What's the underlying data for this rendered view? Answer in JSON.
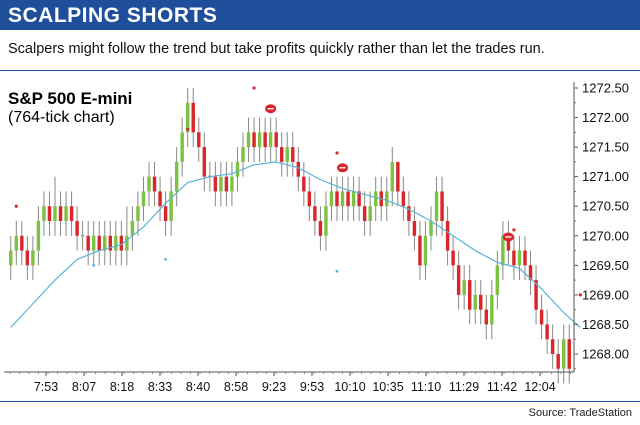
{
  "header": {
    "title": "SCALPING SHORTS"
  },
  "subtitle": "Scalpers might follow the trend but take profits quickly rather than let the trades run.",
  "source": "Source: TradeStation",
  "colors": {
    "header_bg": "#1f4e9a",
    "up_bar": "#7cc243",
    "down_bar": "#d8262b",
    "neutral_bar": "#aaaaaa",
    "moving_average": "#5ab4d6",
    "marker_red": "#d8262b",
    "marker_teal": "#5ab4d6"
  },
  "chart_data": {
    "type": "candlestick",
    "title": "S&P 500 E-mini",
    "note": "(764-tick chart)",
    "ylim": [
      1267.5,
      1272.6
    ],
    "y_ticks": [
      "1272.50",
      "1272.00",
      "1271.50",
      "1271.00",
      "1270.50",
      "1270.00",
      "1269.50",
      "1269.00",
      "1268.50",
      "1268.00"
    ],
    "x_tick_labels": [
      "7:53",
      "8:07",
      "8:18",
      "8:33",
      "8:40",
      "8:58",
      "9:23",
      "9:53",
      "10:10",
      "10:35",
      "11:10",
      "11:29",
      "11:42",
      "12:04"
    ],
    "bars": [
      {
        "o": 1269.5,
        "c": 1269.75,
        "h": 1270.0,
        "l": 1269.25
      },
      {
        "o": 1269.75,
        "c": 1270.0,
        "h": 1270.25,
        "l": 1269.5
      },
      {
        "o": 1270.0,
        "c": 1269.75,
        "h": 1270.25,
        "l": 1269.5
      },
      {
        "o": 1269.75,
        "c": 1269.5,
        "h": 1270.0,
        "l": 1269.25
      },
      {
        "o": 1269.5,
        "c": 1269.75,
        "h": 1270.0,
        "l": 1269.25
      },
      {
        "o": 1269.75,
        "c": 1270.25,
        "h": 1270.5,
        "l": 1269.5
      },
      {
        "o": 1270.25,
        "c": 1270.5,
        "h": 1270.75,
        "l": 1270.0
      },
      {
        "o": 1270.5,
        "c": 1270.25,
        "h": 1270.75,
        "l": 1270.0
      },
      {
        "o": 1270.25,
        "c": 1270.5,
        "h": 1271.0,
        "l": 1270.0
      },
      {
        "o": 1270.5,
        "c": 1270.25,
        "h": 1270.75,
        "l": 1270.0
      },
      {
        "o": 1270.25,
        "c": 1270.5,
        "h": 1270.75,
        "l": 1270.0
      },
      {
        "o": 1270.5,
        "c": 1270.25,
        "h": 1270.75,
        "l": 1270.0
      },
      {
        "o": 1270.25,
        "c": 1270.0,
        "h": 1270.5,
        "l": 1269.75
      },
      {
        "o": 1270.0,
        "c": 1270.0,
        "h": 1270.25,
        "l": 1269.75
      },
      {
        "o": 1270.0,
        "c": 1269.75,
        "h": 1270.25,
        "l": 1269.5
      },
      {
        "o": 1269.75,
        "c": 1270.0,
        "h": 1270.25,
        "l": 1269.5
      },
      {
        "o": 1270.0,
        "c": 1269.75,
        "h": 1270.25,
        "l": 1269.5
      },
      {
        "o": 1269.75,
        "c": 1270.0,
        "h": 1270.25,
        "l": 1269.5
      },
      {
        "o": 1270.0,
        "c": 1269.75,
        "h": 1270.25,
        "l": 1269.5
      },
      {
        "o": 1269.75,
        "c": 1270.0,
        "h": 1270.25,
        "l": 1269.5
      },
      {
        "o": 1270.0,
        "c": 1269.75,
        "h": 1270.25,
        "l": 1269.5
      },
      {
        "o": 1269.75,
        "c": 1270.0,
        "h": 1270.5,
        "l": 1269.5
      },
      {
        "o": 1270.0,
        "c": 1270.25,
        "h": 1270.5,
        "l": 1269.75
      },
      {
        "o": 1270.25,
        "c": 1270.5,
        "h": 1270.75,
        "l": 1270.0
      },
      {
        "o": 1270.5,
        "c": 1270.75,
        "h": 1271.0,
        "l": 1270.25
      },
      {
        "o": 1270.75,
        "c": 1271.0,
        "h": 1271.25,
        "l": 1270.5
      },
      {
        "o": 1271.0,
        "c": 1270.75,
        "h": 1271.25,
        "l": 1270.5
      },
      {
        "o": 1270.75,
        "c": 1270.5,
        "h": 1271.0,
        "l": 1270.25
      },
      {
        "o": 1270.5,
        "c": 1270.25,
        "h": 1270.75,
        "l": 1270.0
      },
      {
        "o": 1270.25,
        "c": 1270.75,
        "h": 1271.0,
        "l": 1270.0
      },
      {
        "o": 1270.75,
        "c": 1271.25,
        "h": 1271.5,
        "l": 1270.5
      },
      {
        "o": 1271.25,
        "c": 1271.75,
        "h": 1272.0,
        "l": 1271.0
      },
      {
        "o": 1271.75,
        "c": 1272.25,
        "h": 1272.5,
        "l": 1271.5
      },
      {
        "o": 1272.25,
        "c": 1271.75,
        "h": 1272.5,
        "l": 1271.5
      },
      {
        "o": 1271.75,
        "c": 1271.5,
        "h": 1272.0,
        "l": 1271.25
      },
      {
        "o": 1271.5,
        "c": 1271.0,
        "h": 1271.75,
        "l": 1270.75
      },
      {
        "o": 1271.0,
        "c": 1271.0,
        "h": 1271.25,
        "l": 1270.75
      },
      {
        "o": 1271.0,
        "c": 1270.75,
        "h": 1271.25,
        "l": 1270.5
      },
      {
        "o": 1270.75,
        "c": 1271.0,
        "h": 1271.25,
        "l": 1270.5
      },
      {
        "o": 1271.0,
        "c": 1270.75,
        "h": 1271.25,
        "l": 1270.5
      },
      {
        "o": 1270.75,
        "c": 1271.0,
        "h": 1271.25,
        "l": 1270.5
      },
      {
        "o": 1271.0,
        "c": 1271.25,
        "h": 1271.5,
        "l": 1270.75
      },
      {
        "o": 1271.25,
        "c": 1271.5,
        "h": 1271.75,
        "l": 1271.0
      },
      {
        "o": 1271.5,
        "c": 1271.75,
        "h": 1272.0,
        "l": 1271.25
      },
      {
        "o": 1271.75,
        "c": 1271.5,
        "h": 1272.0,
        "l": 1271.25
      },
      {
        "o": 1271.5,
        "c": 1271.75,
        "h": 1272.0,
        "l": 1271.25
      },
      {
        "o": 1271.75,
        "c": 1271.5,
        "h": 1272.0,
        "l": 1271.25
      },
      {
        "o": 1271.5,
        "c": 1271.75,
        "h": 1272.0,
        "l": 1271.25
      },
      {
        "o": 1271.75,
        "c": 1271.5,
        "h": 1272.0,
        "l": 1271.25
      },
      {
        "o": 1271.5,
        "c": 1271.25,
        "h": 1271.75,
        "l": 1271.0
      },
      {
        "o": 1271.25,
        "c": 1271.5,
        "h": 1271.75,
        "l": 1271.0
      },
      {
        "o": 1271.5,
        "c": 1271.25,
        "h": 1271.75,
        "l": 1271.0
      },
      {
        "o": 1271.25,
        "c": 1271.0,
        "h": 1271.5,
        "l": 1270.75
      },
      {
        "o": 1271.0,
        "c": 1270.75,
        "h": 1271.25,
        "l": 1270.5
      },
      {
        "o": 1270.75,
        "c": 1270.5,
        "h": 1271.0,
        "l": 1270.25
      },
      {
        "o": 1270.5,
        "c": 1270.25,
        "h": 1270.75,
        "l": 1270.0
      },
      {
        "o": 1270.25,
        "c": 1270.0,
        "h": 1270.5,
        "l": 1269.75
      },
      {
        "o": 1270.0,
        "c": 1270.5,
        "h": 1270.75,
        "l": 1269.75
      },
      {
        "o": 1270.5,
        "c": 1270.75,
        "h": 1271.0,
        "l": 1270.25
      },
      {
        "o": 1270.75,
        "c": 1270.5,
        "h": 1271.0,
        "l": 1270.25
      },
      {
        "o": 1270.5,
        "c": 1270.75,
        "h": 1271.0,
        "l": 1270.25
      },
      {
        "o": 1270.75,
        "c": 1270.5,
        "h": 1271.0,
        "l": 1270.25
      },
      {
        "o": 1270.5,
        "c": 1270.75,
        "h": 1271.0,
        "l": 1270.25
      },
      {
        "o": 1270.75,
        "c": 1270.5,
        "h": 1271.0,
        "l": 1270.25
      },
      {
        "o": 1270.5,
        "c": 1270.25,
        "h": 1270.75,
        "l": 1270.0
      },
      {
        "o": 1270.25,
        "c": 1270.5,
        "h": 1270.75,
        "l": 1270.0
      },
      {
        "o": 1270.5,
        "c": 1270.75,
        "h": 1271.0,
        "l": 1270.25
      },
      {
        "o": 1270.75,
        "c": 1270.5,
        "h": 1271.0,
        "l": 1270.25
      },
      {
        "o": 1270.5,
        "c": 1270.75,
        "h": 1271.0,
        "l": 1270.25
      },
      {
        "o": 1270.75,
        "c": 1271.25,
        "h": 1271.5,
        "l": 1270.5
      },
      {
        "o": 1271.25,
        "c": 1270.75,
        "h": 1271.25,
        "l": 1270.5
      },
      {
        "o": 1270.75,
        "c": 1270.5,
        "h": 1271.0,
        "l": 1270.25
      },
      {
        "o": 1270.5,
        "c": 1270.25,
        "h": 1270.75,
        "l": 1270.0
      },
      {
        "o": 1270.25,
        "c": 1270.0,
        "h": 1270.5,
        "l": 1269.75
      },
      {
        "o": 1270.0,
        "c": 1269.5,
        "h": 1270.25,
        "l": 1269.25
      },
      {
        "o": 1269.5,
        "c": 1270.0,
        "h": 1270.25,
        "l": 1269.25
      },
      {
        "o": 1270.0,
        "c": 1270.25,
        "h": 1270.5,
        "l": 1269.75
      },
      {
        "o": 1270.25,
        "c": 1270.75,
        "h": 1271.0,
        "l": 1270.0
      },
      {
        "o": 1270.75,
        "c": 1270.25,
        "h": 1271.0,
        "l": 1270.0
      },
      {
        "o": 1270.25,
        "c": 1269.75,
        "h": 1270.5,
        "l": 1269.5
      },
      {
        "o": 1269.75,
        "c": 1269.5,
        "h": 1270.0,
        "l": 1269.25
      },
      {
        "o": 1269.5,
        "c": 1269.0,
        "h": 1269.75,
        "l": 1268.75
      },
      {
        "o": 1269.0,
        "c": 1269.25,
        "h": 1269.5,
        "l": 1268.75
      },
      {
        "o": 1269.25,
        "c": 1268.75,
        "h": 1269.5,
        "l": 1268.5
      },
      {
        "o": 1268.75,
        "c": 1269.0,
        "h": 1269.25,
        "l": 1268.5
      },
      {
        "o": 1269.0,
        "c": 1268.75,
        "h": 1269.25,
        "l": 1268.5
      },
      {
        "o": 1268.75,
        "c": 1268.5,
        "h": 1269.0,
        "l": 1268.25
      },
      {
        "o": 1268.5,
        "c": 1269.0,
        "h": 1269.25,
        "l": 1268.25
      },
      {
        "o": 1269.0,
        "c": 1269.5,
        "h": 1269.75,
        "l": 1268.75
      },
      {
        "o": 1269.5,
        "c": 1270.0,
        "h": 1270.25,
        "l": 1269.25
      },
      {
        "o": 1270.0,
        "c": 1269.75,
        "h": 1270.25,
        "l": 1269.5
      },
      {
        "o": 1269.75,
        "c": 1269.5,
        "h": 1270.0,
        "l": 1269.25
      },
      {
        "o": 1269.5,
        "c": 1269.75,
        "h": 1270.0,
        "l": 1269.25
      },
      {
        "o": 1269.75,
        "c": 1269.5,
        "h": 1270.0,
        "l": 1269.25
      },
      {
        "o": 1269.5,
        "c": 1269.25,
        "h": 1269.75,
        "l": 1269.0
      },
      {
        "o": 1269.25,
        "c": 1268.75,
        "h": 1269.5,
        "l": 1268.5
      },
      {
        "o": 1268.75,
        "c": 1268.5,
        "h": 1269.0,
        "l": 1268.25
      },
      {
        "o": 1268.5,
        "c": 1268.25,
        "h": 1268.75,
        "l": 1268.0
      },
      {
        "o": 1268.25,
        "c": 1268.0,
        "h": 1268.5,
        "l": 1267.75
      },
      {
        "o": 1268.0,
        "c": 1267.75,
        "h": 1268.25,
        "l": 1267.5
      },
      {
        "o": 1267.75,
        "c": 1268.25,
        "h": 1268.5,
        "l": 1267.5
      },
      {
        "o": 1268.25,
        "c": 1267.75,
        "h": 1268.5,
        "l": 1267.5
      }
    ],
    "moving_average": [
      [
        0,
        1268.45
      ],
      [
        4,
        1268.85
      ],
      [
        8,
        1269.25
      ],
      [
        12,
        1269.6
      ],
      [
        16,
        1269.75
      ],
      [
        20,
        1269.85
      ],
      [
        24,
        1270.15
      ],
      [
        28,
        1270.55
      ],
      [
        32,
        1270.9
      ],
      [
        36,
        1271.0
      ],
      [
        40,
        1271.05
      ],
      [
        44,
        1271.2
      ],
      [
        48,
        1271.25
      ],
      [
        52,
        1271.15
      ],
      [
        56,
        1270.95
      ],
      [
        60,
        1270.8
      ],
      [
        64,
        1270.7
      ],
      [
        68,
        1270.6
      ],
      [
        72,
        1270.45
      ],
      [
        76,
        1270.25
      ],
      [
        80,
        1270.0
      ],
      [
        84,
        1269.75
      ],
      [
        88,
        1269.55
      ],
      [
        92,
        1269.45
      ],
      [
        96,
        1269.1
      ],
      [
        100,
        1268.7
      ],
      [
        103,
        1268.45
      ]
    ],
    "markers_red_dots": [
      [
        1,
        1270.5
      ],
      [
        32,
        1271.8
      ],
      [
        44,
        1272.5
      ],
      [
        59,
        1271.4
      ],
      [
        91,
        1270.1
      ],
      [
        103,
        1269.0
      ]
    ],
    "markers_teal_dots": [
      [
        15,
        1269.5
      ],
      [
        28,
        1269.6
      ],
      [
        59,
        1269.4
      ]
    ],
    "markers_entry": [
      [
        47,
        1272.15
      ],
      [
        60,
        1271.15
      ],
      [
        90,
        1269.98
      ]
    ]
  }
}
